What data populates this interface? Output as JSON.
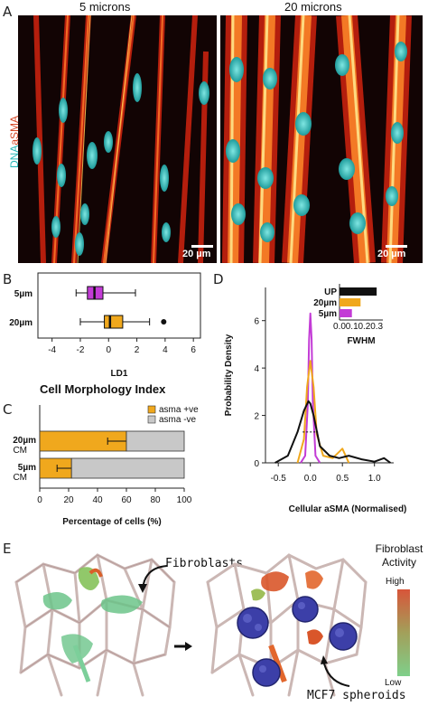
{
  "panelA": {
    "letter": "A",
    "left_title": "5 microns",
    "right_title": "20 microns",
    "ylabel_dna": "DNA",
    "ylabel_asma": "aSMA",
    "scale_left": "20 µm",
    "scale_right": "20 µm"
  },
  "panelB": {
    "letter": "B",
    "title": "Cell Morphology Index",
    "chart_data": {
      "type": "boxplot",
      "categories": [
        "5µm",
        "20µm"
      ],
      "xlabel": "LD1",
      "xlim": [
        -5,
        6.5
      ],
      "xticks": [
        -4,
        -2,
        0,
        2,
        4,
        6
      ],
      "series": [
        {
          "name": "5µm",
          "whisker_low": -2.3,
          "q1": -1.5,
          "median": -1.0,
          "q3": -0.4,
          "whisker_high": 1.9,
          "outliers": [],
          "color": "#c33bd6"
        },
        {
          "name": "20µm",
          "whisker_low": -2.0,
          "q1": -0.3,
          "median": 0.1,
          "q3": 1.0,
          "whisker_high": 2.9,
          "outliers": [
            3.9
          ],
          "color": "#f0a81d"
        }
      ]
    }
  },
  "panelC": {
    "letter": "C",
    "chart_data": {
      "type": "bar",
      "orientation": "horizontal",
      "stacked": true,
      "categories": [
        [
          "20µm",
          "CM"
        ],
        [
          "5µm",
          "CM"
        ]
      ],
      "xlabel": "Percentage of cells (%)",
      "xlim": [
        0,
        100
      ],
      "xticks": [
        0,
        20,
        40,
        60,
        80,
        100
      ],
      "series": [
        {
          "name": "asma +ve",
          "values": [
            60,
            22
          ],
          "errors": [
            13,
            10
          ],
          "color": "#f0a81d"
        },
        {
          "name": "asma -ve",
          "values": [
            40,
            78
          ],
          "color": "#c8c8c8"
        }
      ],
      "legend": "top-right"
    }
  },
  "panelD": {
    "letter": "D",
    "chart_data": {
      "type": "line",
      "xlabel": "Cellular aSMA (Normalised)",
      "ylabel": "Probability Density",
      "xlim": [
        -0.7,
        1.3
      ],
      "ylim": [
        0,
        7.4
      ],
      "xticks": [
        "-0.5",
        "0.0",
        "0.5",
        "1.0"
      ],
      "yticks": [
        0,
        2,
        4,
        6
      ],
      "series": [
        {
          "name": "5µm",
          "color": "#c33bd6",
          "x": [
            -0.15,
            -0.08,
            -0.04,
            -0.02,
            0.0,
            0.02,
            0.04,
            0.08,
            0.15
          ],
          "y": [
            0,
            0.3,
            2.5,
            5.2,
            6.3,
            5.2,
            2.5,
            0.3,
            0
          ]
        },
        {
          "name": "20µm",
          "color": "#f0a81d",
          "x": [
            -0.2,
            -0.1,
            -0.05,
            0.0,
            0.05,
            0.1,
            0.2,
            0.35,
            0.5,
            0.6
          ],
          "y": [
            0,
            1.0,
            3.2,
            4.3,
            3.2,
            1.2,
            0.3,
            0.2,
            0.6,
            0
          ]
        },
        {
          "name": "UP",
          "color": "#111111",
          "x": [
            -0.55,
            -0.35,
            -0.2,
            -0.1,
            -0.03,
            0.0,
            0.05,
            0.15,
            0.3,
            0.45,
            0.6,
            0.8,
            1.0,
            1.15,
            1.25
          ],
          "y": [
            0,
            0.3,
            1.3,
            2.2,
            2.6,
            2.5,
            2.0,
            0.7,
            0.3,
            0.2,
            0.3,
            0.15,
            0.05,
            0.2,
            0
          ]
        }
      ],
      "inset": {
        "type": "bar",
        "orientation": "horizontal",
        "xlabel": "FWHM",
        "xticks": [
          "0.0",
          "0.1",
          "0.2",
          "0.3"
        ],
        "xlim": [
          0,
          0.35
        ],
        "categories": [
          "UP",
          "20µm",
          "5µm"
        ],
        "values": [
          0.3,
          0.17,
          0.1
        ],
        "colors": [
          "#111111",
          "#f0a81d",
          "#c33bd6"
        ]
      }
    }
  },
  "panelE": {
    "letter": "E",
    "fibroblasts_label": "Fibroblasts",
    "spheroids_label": "MCF7 spheroids",
    "activity_title": "Fibroblast Activity",
    "activity_high": "High",
    "activity_low": "Low"
  }
}
